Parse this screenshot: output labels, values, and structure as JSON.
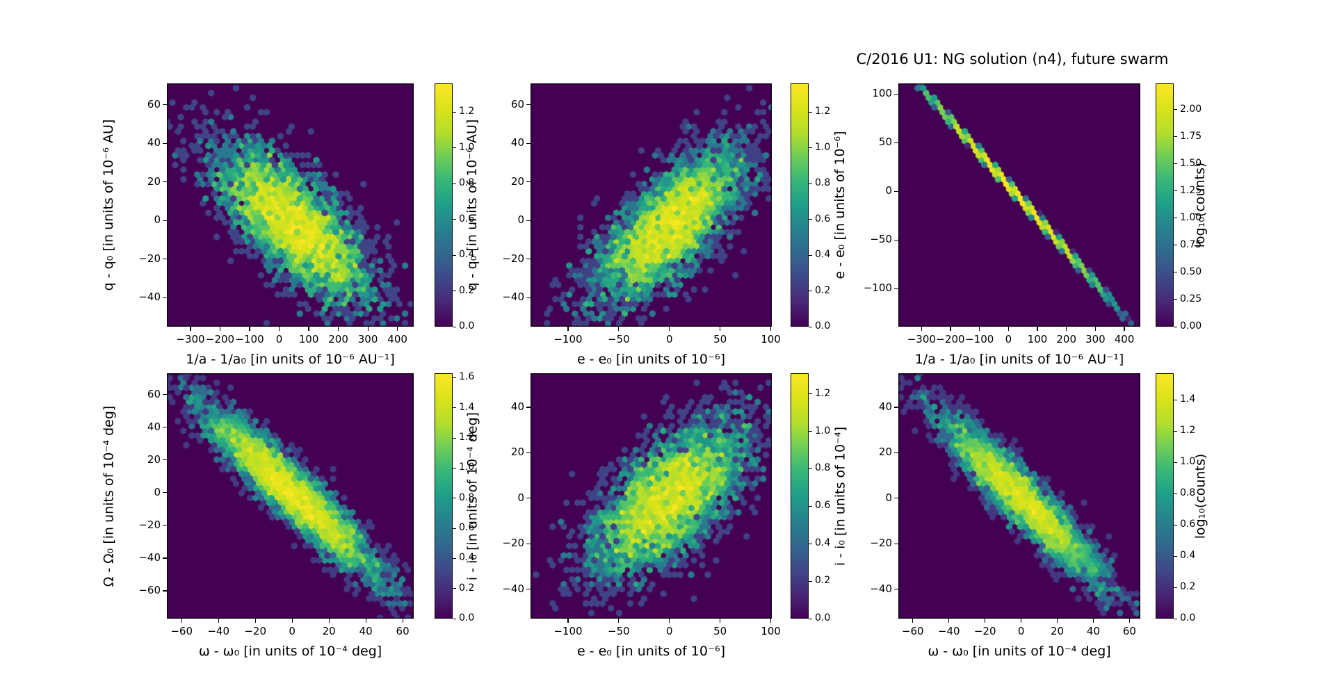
{
  "title": "C/2016 U1: NG solution (n4),  future swarm",
  "colors": {
    "background": "#ffffff",
    "plot_background": "#440154",
    "axis_text": "#000000",
    "viridis": [
      "#440154",
      "#482878",
      "#3e4989",
      "#31688e",
      "#26828e",
      "#1f9e89",
      "#35b779",
      "#6ece58",
      "#b5de2b",
      "#dae319",
      "#fde725"
    ]
  },
  "chart_data": [
    {
      "type": "hexbin",
      "panel": "top-left",
      "xlabel": "1/a - 1/a₀ [in units of 10⁻⁶ AU⁻¹]",
      "ylabel": "q - q₀ [in units of 10⁻⁶ AU]",
      "xlim": [
        -380,
        455
      ],
      "ylim": [
        -55,
        71
      ],
      "xticks": [
        -300,
        -200,
        -100,
        0,
        100,
        200,
        300,
        400
      ],
      "yticks": [
        60,
        40,
        20,
        0,
        -20,
        -40
      ],
      "distribution": {
        "kind": "gaussian",
        "center_x": 54,
        "center_y": -2,
        "sigma_x": 130,
        "sigma_y": 20,
        "correlation": -0.72,
        "n": 4200,
        "seed": 7
      },
      "colorbar": {
        "ticks": [
          "0.0",
          "0.2",
          "0.4",
          "0.6",
          "0.8",
          "1.0",
          "1.2"
        ],
        "vmax": 1.36,
        "label": ""
      }
    },
    {
      "type": "hexbin",
      "panel": "top-middle",
      "xlabel": "e - e₀ [in units of 10⁻⁶]",
      "ylabel": "q - q₀ [in units of 10⁻⁶ AU]",
      "xlim": [
        -137,
        101
      ],
      "ylim": [
        -55,
        71
      ],
      "xticks": [
        -100,
        -50,
        0,
        50,
        100
      ],
      "yticks": [
        60,
        40,
        20,
        0,
        -20,
        -40
      ],
      "distribution": {
        "kind": "gaussian",
        "center_x": 1,
        "center_y": -2,
        "sigma_x": 38,
        "sigma_y": 20,
        "correlation": 0.72,
        "n": 4200,
        "seed": 13
      },
      "colorbar": {
        "ticks": [
          "0.0",
          "0.2",
          "0.4",
          "0.6",
          "0.8",
          "1.0",
          "1.2"
        ],
        "vmax": 1.36,
        "label": ""
      }
    },
    {
      "type": "hexbin",
      "panel": "top-right",
      "xlabel": "1/a - 1/a₀ [in units of 10⁻⁶ AU⁻¹]",
      "ylabel": "e - e₀ [in units of 10⁻⁶]",
      "xlim": [
        -380,
        455
      ],
      "ylim": [
        -139,
        111
      ],
      "xticks": [
        -300,
        -200,
        -100,
        0,
        100,
        200,
        300,
        400
      ],
      "yticks": [
        100,
        50,
        0,
        -50,
        -100
      ],
      "distribution": {
        "kind": "gaussian",
        "center_x": 21,
        "center_y": -1,
        "sigma_x": 134,
        "sigma_y": 45,
        "correlation": -0.9998,
        "n": 9000,
        "seed": 21
      },
      "colorbar": {
        "ticks": [
          "0.00",
          "0.25",
          "0.50",
          "0.75",
          "1.00",
          "1.25",
          "1.50",
          "1.75",
          "2.00"
        ],
        "vmax": 2.24,
        "label": "log₁₀(counts)"
      }
    },
    {
      "type": "hexbin",
      "panel": "bottom-left",
      "xlabel": "ω - ω₀ [in units of 10⁻⁴ deg]",
      "ylabel": "Ω - Ω₀ [in units of 10⁻⁴ deg]",
      "xlim": [
        -68,
        66
      ],
      "ylim": [
        -77,
        73
      ],
      "xticks": [
        -60,
        -40,
        -20,
        0,
        20,
        40,
        60
      ],
      "yticks": [
        60,
        40,
        20,
        0,
        -20,
        -40,
        -60
      ],
      "distribution": {
        "kind": "gaussian",
        "center_x": 0,
        "center_y": 0,
        "sigma_x": 23,
        "sigma_y": 25,
        "correlation": -0.93,
        "n": 5200,
        "seed": 31
      },
      "colorbar": {
        "ticks": [
          "0.0",
          "0.2",
          "0.4",
          "0.6",
          "0.8",
          "1.0",
          "1.2",
          "1.4",
          "1.6"
        ],
        "vmax": 1.63,
        "label": ""
      }
    },
    {
      "type": "hexbin",
      "panel": "bottom-middle",
      "xlabel": "e - e₀ [in units of 10⁻⁶]",
      "ylabel": "i - i₀ [in units of 10⁻⁴ deg]",
      "xlim": [
        -137,
        101
      ],
      "ylim": [
        -53,
        55
      ],
      "xticks": [
        -100,
        -50,
        0,
        50,
        100
      ],
      "yticks": [
        40,
        20,
        0,
        -20,
        -40
      ],
      "distribution": {
        "kind": "gaussian",
        "center_x": 0,
        "center_y": 0,
        "sigma_x": 37,
        "sigma_y": 17,
        "correlation": 0.62,
        "n": 4200,
        "seed": 41
      },
      "colorbar": {
        "ticks": [
          "0.0",
          "0.2",
          "0.4",
          "0.6",
          "0.8",
          "1.0",
          "1.2"
        ],
        "vmax": 1.31,
        "label": ""
      }
    },
    {
      "type": "hexbin",
      "panel": "bottom-right",
      "xlabel": "ω - ω₀ [in units of 10⁻⁴ deg]",
      "ylabel": "i - i₀ [in units of 10⁻⁴]",
      "xlim": [
        -68,
        66
      ],
      "ylim": [
        -53,
        55
      ],
      "xticks": [
        -60,
        -40,
        -20,
        0,
        20,
        40,
        60
      ],
      "yticks": [
        40,
        20,
        0,
        -20,
        -40
      ],
      "distribution": {
        "kind": "gaussian",
        "center_x": 0,
        "center_y": 0,
        "sigma_x": 22,
        "sigma_y": 18,
        "correlation": -0.93,
        "n": 4600,
        "seed": 51
      },
      "colorbar": {
        "ticks": [
          "0.0",
          "0.2",
          "0.4",
          "0.6",
          "0.8",
          "1.0",
          "1.2",
          "1.4"
        ],
        "vmax": 1.57,
        "label": "log₁₀(counts)"
      }
    }
  ]
}
